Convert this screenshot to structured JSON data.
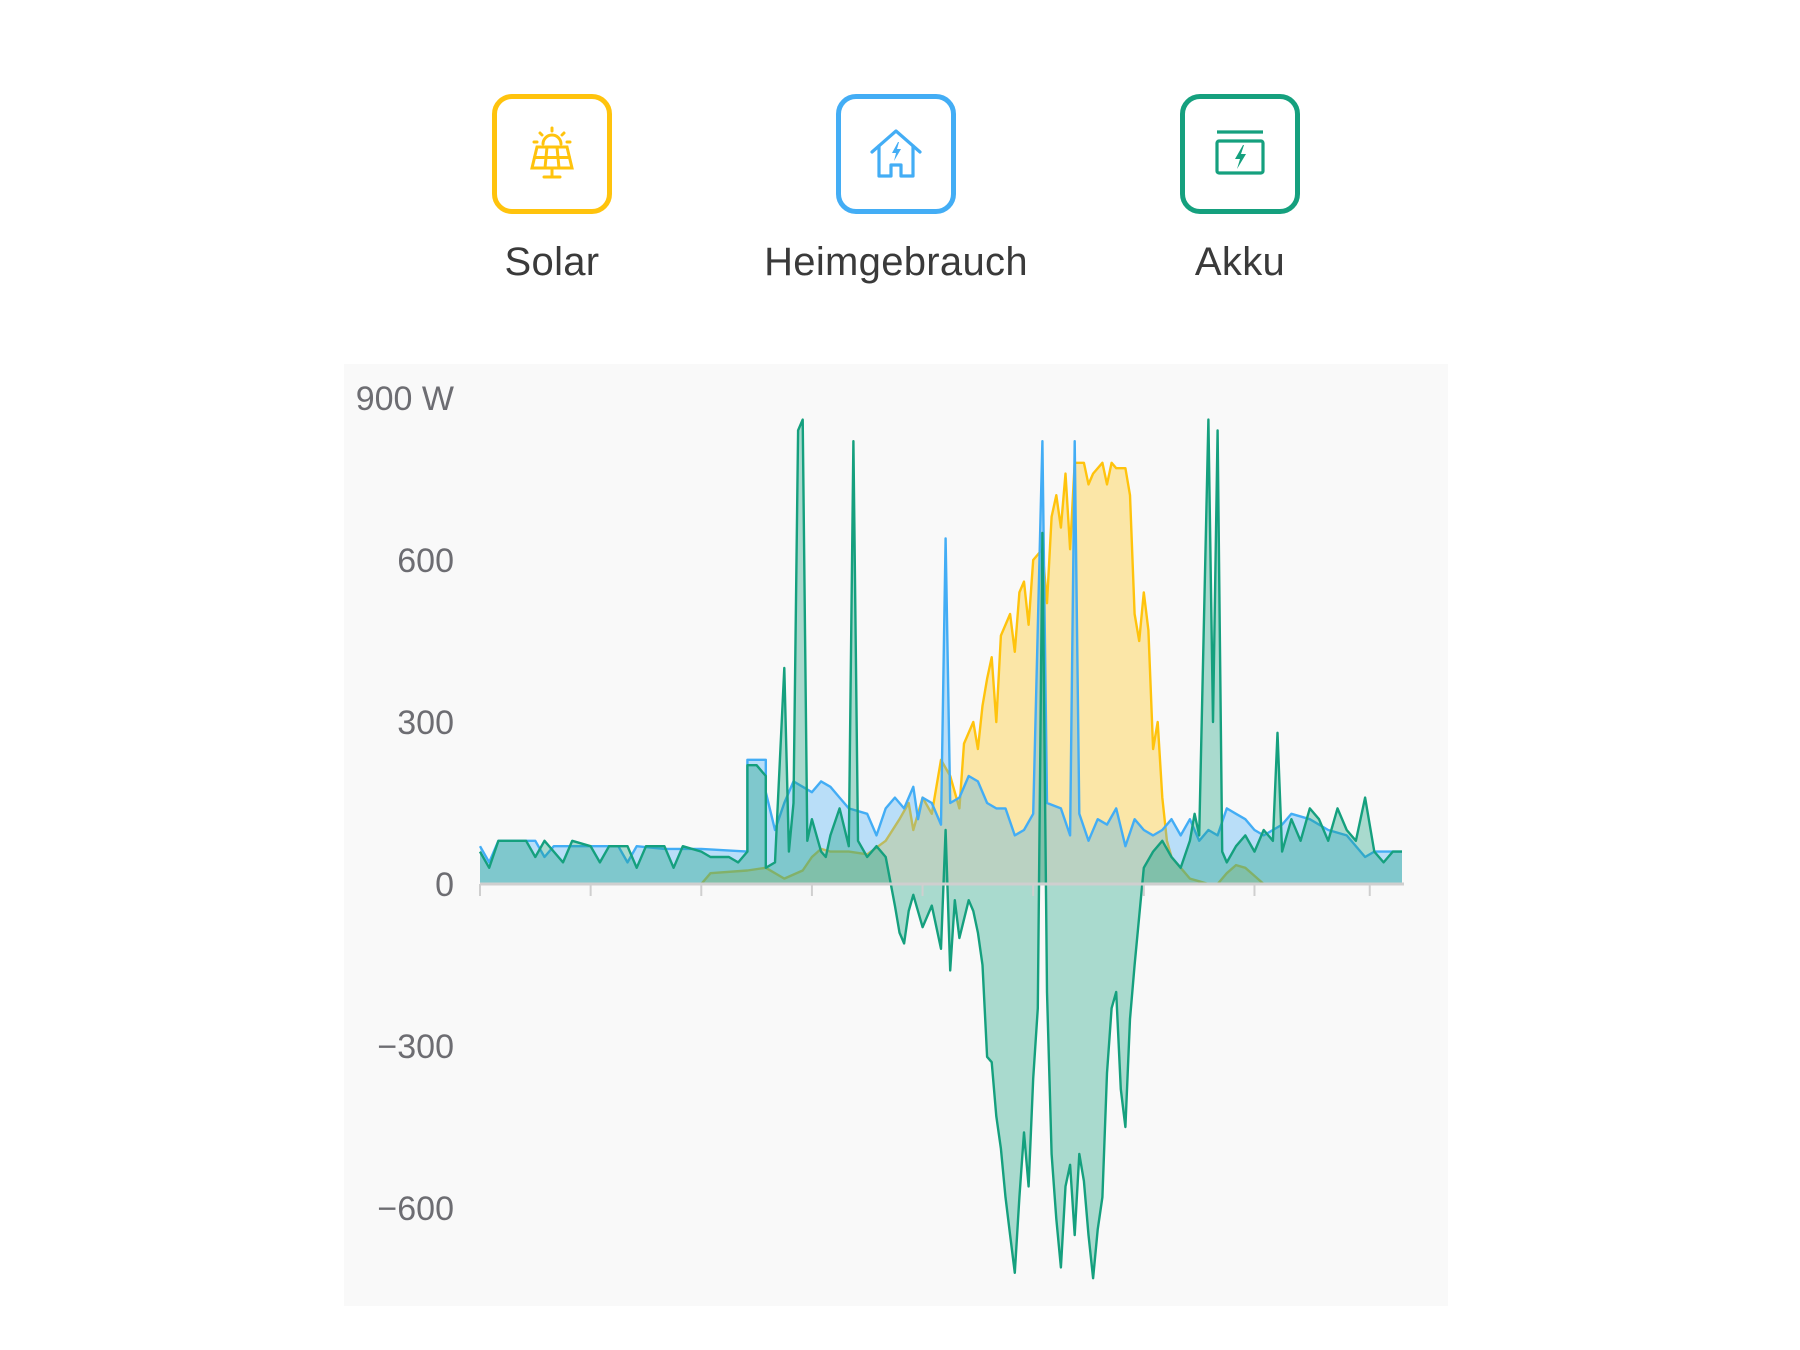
{
  "legend": {
    "items": [
      {
        "label": "Solar",
        "icon": "solar-panel-icon",
        "color": "#FFC30D"
      },
      {
        "label": "Heimgebrauch",
        "icon": "house-power-icon",
        "color": "#43ADF5"
      },
      {
        "label": "Akku",
        "icon": "battery-charge-icon",
        "color": "#15A07E"
      }
    ]
  },
  "chart_data": {
    "type": "area",
    "title": "",
    "xlabel": "",
    "ylabel": "",
    "ylim": [
      -750,
      900
    ],
    "y_ticks": [
      {
        "value": 900,
        "label": "900 W"
      },
      {
        "value": 600,
        "label": "600"
      },
      {
        "value": 300,
        "label": "300"
      },
      {
        "value": 0,
        "label": "0"
      },
      {
        "value": -300,
        "label": "−300"
      },
      {
        "value": -600,
        "label": "−600"
      }
    ],
    "grid": false,
    "x_tick_count": 9,
    "x_tick_positions": [
      0,
      0.12,
      0.24,
      0.36,
      0.48,
      0.6,
      0.72,
      0.84,
      0.965
    ],
    "series": [
      {
        "name": "Solar",
        "color": "#FFC30D",
        "points": [
          [
            0,
            0
          ],
          [
            0.24,
            0
          ],
          [
            0.25,
            20
          ],
          [
            0.29,
            25
          ],
          [
            0.31,
            30
          ],
          [
            0.33,
            10
          ],
          [
            0.35,
            25
          ],
          [
            0.36,
            50
          ],
          [
            0.37,
            65
          ],
          [
            0.38,
            60
          ],
          [
            0.4,
            60
          ],
          [
            0.42,
            55
          ],
          [
            0.44,
            80
          ],
          [
            0.455,
            120
          ],
          [
            0.465,
            150
          ],
          [
            0.47,
            100
          ],
          [
            0.48,
            160
          ],
          [
            0.49,
            130
          ],
          [
            0.5,
            230
          ],
          [
            0.51,
            200
          ],
          [
            0.52,
            140
          ],
          [
            0.525,
            260
          ],
          [
            0.535,
            300
          ],
          [
            0.54,
            250
          ],
          [
            0.545,
            330
          ],
          [
            0.55,
            380
          ],
          [
            0.555,
            420
          ],
          [
            0.56,
            300
          ],
          [
            0.565,
            460
          ],
          [
            0.575,
            500
          ],
          [
            0.58,
            430
          ],
          [
            0.585,
            540
          ],
          [
            0.59,
            560
          ],
          [
            0.595,
            480
          ],
          [
            0.6,
            600
          ],
          [
            0.61,
            620
          ],
          [
            0.615,
            520
          ],
          [
            0.62,
            680
          ],
          [
            0.625,
            720
          ],
          [
            0.63,
            660
          ],
          [
            0.635,
            760
          ],
          [
            0.64,
            620
          ],
          [
            0.645,
            780
          ],
          [
            0.655,
            780
          ],
          [
            0.66,
            740
          ],
          [
            0.665,
            760
          ],
          [
            0.675,
            780
          ],
          [
            0.68,
            740
          ],
          [
            0.685,
            780
          ],
          [
            0.69,
            770
          ],
          [
            0.7,
            770
          ],
          [
            0.705,
            720
          ],
          [
            0.71,
            500
          ],
          [
            0.715,
            450
          ],
          [
            0.72,
            540
          ],
          [
            0.725,
            470
          ],
          [
            0.73,
            250
          ],
          [
            0.735,
            300
          ],
          [
            0.74,
            160
          ],
          [
            0.745,
            80
          ],
          [
            0.75,
            50
          ],
          [
            0.76,
            30
          ],
          [
            0.77,
            10
          ],
          [
            0.78,
            5
          ],
          [
            0.79,
            0
          ],
          [
            0.8,
            0
          ],
          [
            0.81,
            20
          ],
          [
            0.82,
            35
          ],
          [
            0.83,
            30
          ],
          [
            0.84,
            15
          ],
          [
            0.85,
            0
          ],
          [
            1,
            0
          ]
        ]
      },
      {
        "name": "Heimgebrauch",
        "color": "#43ADF5",
        "points": [
          [
            0,
            70
          ],
          [
            0.01,
            40
          ],
          [
            0.02,
            80
          ],
          [
            0.06,
            80
          ],
          [
            0.07,
            50
          ],
          [
            0.08,
            70
          ],
          [
            0.15,
            70
          ],
          [
            0.16,
            40
          ],
          [
            0.17,
            70
          ],
          [
            0.2,
            65
          ],
          [
            0.24,
            65
          ],
          [
            0.29,
            60
          ],
          [
            0.29,
            230
          ],
          [
            0.31,
            230
          ],
          [
            0.31,
            170
          ],
          [
            0.32,
            100
          ],
          [
            0.33,
            150
          ],
          [
            0.34,
            190
          ],
          [
            0.35,
            180
          ],
          [
            0.36,
            170
          ],
          [
            0.37,
            190
          ],
          [
            0.38,
            180
          ],
          [
            0.39,
            160
          ],
          [
            0.4,
            140
          ],
          [
            0.42,
            130
          ],
          [
            0.43,
            90
          ],
          [
            0.44,
            140
          ],
          [
            0.45,
            160
          ],
          [
            0.46,
            140
          ],
          [
            0.47,
            180
          ],
          [
            0.475,
            120
          ],
          [
            0.48,
            160
          ],
          [
            0.49,
            150
          ],
          [
            0.5,
            110
          ],
          [
            0.505,
            640
          ],
          [
            0.51,
            150
          ],
          [
            0.52,
            160
          ],
          [
            0.53,
            200
          ],
          [
            0.54,
            190
          ],
          [
            0.55,
            150
          ],
          [
            0.56,
            140
          ],
          [
            0.57,
            140
          ],
          [
            0.58,
            90
          ],
          [
            0.59,
            100
          ],
          [
            0.6,
            130
          ],
          [
            0.61,
            820
          ],
          [
            0.615,
            150
          ],
          [
            0.63,
            140
          ],
          [
            0.64,
            90
          ],
          [
            0.645,
            820
          ],
          [
            0.65,
            130
          ],
          [
            0.66,
            80
          ],
          [
            0.67,
            120
          ],
          [
            0.68,
            110
          ],
          [
            0.69,
            140
          ],
          [
            0.7,
            70
          ],
          [
            0.71,
            120
          ],
          [
            0.72,
            100
          ],
          [
            0.73,
            90
          ],
          [
            0.74,
            100
          ],
          [
            0.75,
            120
          ],
          [
            0.76,
            90
          ],
          [
            0.77,
            120
          ],
          [
            0.78,
            80
          ],
          [
            0.79,
            100
          ],
          [
            0.8,
            90
          ],
          [
            0.81,
            140
          ],
          [
            0.82,
            130
          ],
          [
            0.83,
            120
          ],
          [
            0.84,
            100
          ],
          [
            0.85,
            90
          ],
          [
            0.86,
            100
          ],
          [
            0.87,
            110
          ],
          [
            0.88,
            130
          ],
          [
            0.9,
            120
          ],
          [
            0.92,
            100
          ],
          [
            0.94,
            90
          ],
          [
            0.96,
            50
          ],
          [
            0.97,
            60
          ],
          [
            1,
            60
          ]
        ]
      },
      {
        "name": "Akku",
        "color": "#15A07E",
        "points": [
          [
            0,
            60
          ],
          [
            0.01,
            30
          ],
          [
            0.02,
            80
          ],
          [
            0.05,
            80
          ],
          [
            0.06,
            50
          ],
          [
            0.07,
            80
          ],
          [
            0.09,
            40
          ],
          [
            0.1,
            80
          ],
          [
            0.12,
            70
          ],
          [
            0.13,
            40
          ],
          [
            0.14,
            70
          ],
          [
            0.16,
            70
          ],
          [
            0.17,
            30
          ],
          [
            0.18,
            70
          ],
          [
            0.2,
            70
          ],
          [
            0.21,
            30
          ],
          [
            0.22,
            70
          ],
          [
            0.24,
            60
          ],
          [
            0.25,
            50
          ],
          [
            0.27,
            50
          ],
          [
            0.28,
            40
          ],
          [
            0.29,
            60
          ],
          [
            0.29,
            220
          ],
          [
            0.3,
            220
          ],
          [
            0.31,
            200
          ],
          [
            0.31,
            30
          ],
          [
            0.32,
            40
          ],
          [
            0.33,
            400
          ],
          [
            0.335,
            60
          ],
          [
            0.34,
            150
          ],
          [
            0.345,
            840
          ],
          [
            0.35,
            860
          ],
          [
            0.355,
            80
          ],
          [
            0.36,
            120
          ],
          [
            0.37,
            60
          ],
          [
            0.375,
            50
          ],
          [
            0.38,
            90
          ],
          [
            0.39,
            140
          ],
          [
            0.4,
            70
          ],
          [
            0.405,
            820
          ],
          [
            0.41,
            80
          ],
          [
            0.42,
            50
          ],
          [
            0.43,
            70
          ],
          [
            0.44,
            50
          ],
          [
            0.45,
            -40
          ],
          [
            0.455,
            -90
          ],
          [
            0.46,
            -110
          ],
          [
            0.465,
            -50
          ],
          [
            0.47,
            -20
          ],
          [
            0.48,
            -80
          ],
          [
            0.49,
            -40
          ],
          [
            0.5,
            -120
          ],
          [
            0.505,
            100
          ],
          [
            0.51,
            -160
          ],
          [
            0.515,
            -30
          ],
          [
            0.52,
            -100
          ],
          [
            0.53,
            -30
          ],
          [
            0.535,
            -50
          ],
          [
            0.54,
            -90
          ],
          [
            0.545,
            -150
          ],
          [
            0.55,
            -320
          ],
          [
            0.555,
            -330
          ],
          [
            0.56,
            -430
          ],
          [
            0.565,
            -490
          ],
          [
            0.57,
            -580
          ],
          [
            0.575,
            -650
          ],
          [
            0.58,
            -720
          ],
          [
            0.585,
            -580
          ],
          [
            0.59,
            -460
          ],
          [
            0.595,
            -560
          ],
          [
            0.6,
            -360
          ],
          [
            0.605,
            -230
          ],
          [
            0.61,
            650
          ],
          [
            0.615,
            -200
          ],
          [
            0.62,
            -500
          ],
          [
            0.625,
            -620
          ],
          [
            0.63,
            -710
          ],
          [
            0.635,
            -560
          ],
          [
            0.64,
            -520
          ],
          [
            0.645,
            -650
          ],
          [
            0.65,
            -500
          ],
          [
            0.655,
            -550
          ],
          [
            0.66,
            -650
          ],
          [
            0.665,
            -730
          ],
          [
            0.67,
            -640
          ],
          [
            0.675,
            -580
          ],
          [
            0.68,
            -350
          ],
          [
            0.685,
            -230
          ],
          [
            0.69,
            -200
          ],
          [
            0.695,
            -380
          ],
          [
            0.7,
            -450
          ],
          [
            0.705,
            -250
          ],
          [
            0.71,
            -150
          ],
          [
            0.715,
            -60
          ],
          [
            0.72,
            30
          ],
          [
            0.73,
            60
          ],
          [
            0.74,
            80
          ],
          [
            0.75,
            50
          ],
          [
            0.76,
            30
          ],
          [
            0.77,
            80
          ],
          [
            0.775,
            130
          ],
          [
            0.78,
            90
          ],
          [
            0.79,
            860
          ],
          [
            0.795,
            300
          ],
          [
            0.8,
            840
          ],
          [
            0.805,
            60
          ],
          [
            0.81,
            40
          ],
          [
            0.82,
            70
          ],
          [
            0.83,
            90
          ],
          [
            0.84,
            60
          ],
          [
            0.85,
            100
          ],
          [
            0.86,
            80
          ],
          [
            0.865,
            280
          ],
          [
            0.87,
            60
          ],
          [
            0.88,
            120
          ],
          [
            0.89,
            80
          ],
          [
            0.9,
            140
          ],
          [
            0.91,
            120
          ],
          [
            0.92,
            80
          ],
          [
            0.93,
            140
          ],
          [
            0.94,
            100
          ],
          [
            0.95,
            80
          ],
          [
            0.96,
            160
          ],
          [
            0.97,
            60
          ],
          [
            0.98,
            40
          ],
          [
            0.99,
            60
          ],
          [
            1,
            60
          ]
        ]
      }
    ]
  }
}
